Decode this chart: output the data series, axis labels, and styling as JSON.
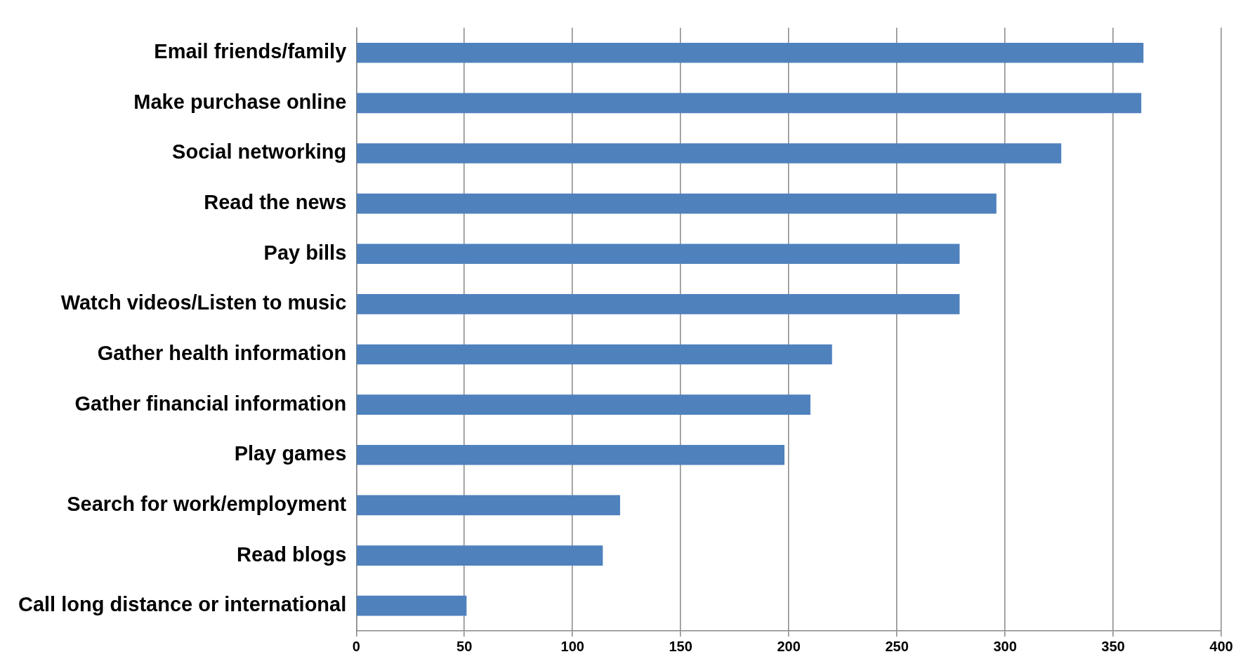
{
  "chart_data": {
    "type": "bar",
    "orientation": "horizontal",
    "categories": [
      "Email friends/family",
      "Make purchase online",
      "Social networking",
      "Read the news",
      "Pay bills",
      "Watch videos/Listen to music",
      "Gather health information",
      "Gather financial information",
      "Play games",
      "Search for work/employment",
      "Read blogs",
      "Call long distance or international"
    ],
    "values": [
      364,
      363,
      326,
      296,
      279,
      279,
      220,
      210,
      198,
      122,
      114,
      51
    ],
    "color": "#4f81bd",
    "xlim": [
      0,
      400
    ],
    "xticks": [
      0,
      50,
      100,
      150,
      200,
      250,
      300,
      350,
      400
    ],
    "grid": "x",
    "legend": false
  }
}
